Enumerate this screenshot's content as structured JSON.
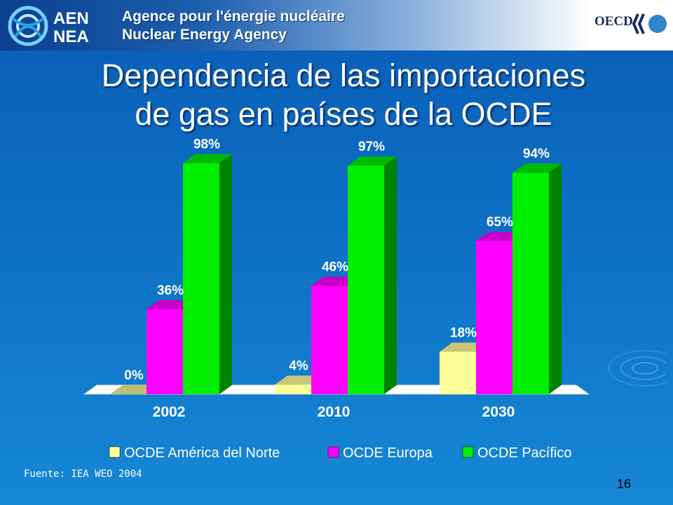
{
  "header": {
    "logo_lines": [
      "AEN",
      "NEA"
    ],
    "agency_fr": "Agence pour l'énergie nucléaire",
    "agency_en": "Nuclear Energy Agency",
    "org": "OECD"
  },
  "title_lines": [
    "Dependencia de las importaciones",
    "de gas en países de la OCDE"
  ],
  "source": "Fuente: IEA WEO 2004",
  "page_number": "16",
  "colors": {
    "series_north_america": "#ffff99",
    "series_europe": "#ff00ff",
    "series_pacific": "#00ee00"
  },
  "chart_data": {
    "type": "bar",
    "style": "3d-clustered",
    "title": "Dependencia de las importaciones de gas en países de la OCDE",
    "categories": [
      "2002",
      "2010",
      "2030"
    ],
    "series": [
      {
        "name": "OCDE América del Norte",
        "values": [
          0,
          4,
          18
        ],
        "labels": [
          "0%",
          "4%",
          "18%"
        ],
        "color": "#ffff99"
      },
      {
        "name": "OCDE Europa",
        "values": [
          36,
          46,
          65
        ],
        "labels": [
          "36%",
          "46%",
          "65%"
        ],
        "color": "#ff00ff"
      },
      {
        "name": "OCDE Pacífico",
        "values": [
          98,
          97,
          94
        ],
        "labels": [
          "98%",
          "97%",
          "94%"
        ],
        "color": "#00ee00"
      }
    ],
    "ylim": [
      0,
      100
    ],
    "unit": "%",
    "grid": false,
    "legend_position": "bottom"
  }
}
